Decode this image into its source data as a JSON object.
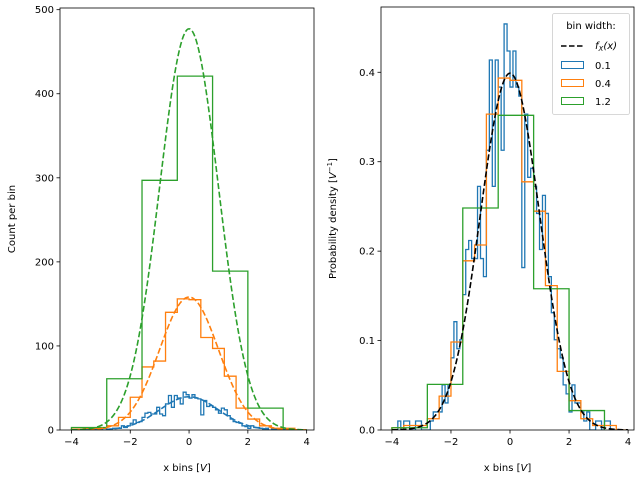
{
  "chart_data": [
    {
      "type": "histogram-step",
      "ylabel": "Count per bin",
      "xlabel_text": "x bins [",
      "xlabel_unit": "V",
      "xlabel_close": "]",
      "xlim": [
        -4.39,
        4.25
      ],
      "ylim": [
        0,
        502
      ],
      "xticks": [
        -4,
        -2,
        0,
        2,
        4
      ],
      "xtick_labels": [
        "−4",
        "−2",
        "0",
        "2",
        "4"
      ],
      "yticks": [
        0,
        100,
        200,
        300,
        400,
        500
      ],
      "ytick_labels": [
        "0",
        "100",
        "200",
        "300",
        "400",
        "500"
      ],
      "normalization": "count",
      "pdf_curve": {
        "distribution": "normal",
        "mu": 0,
        "sigma": 1,
        "scaled_by": "n*bin_width",
        "style": "dashed, series color"
      }
    },
    {
      "type": "histogram-step",
      "ylabel_text": "Probability density [",
      "ylabel_unit": "V",
      "ylabel_sup": "−1",
      "ylabel_close": "]",
      "xlabel_text": "x bins [",
      "xlabel_unit": "V",
      "xlabel_close": "]",
      "xlim": [
        -4.37,
        4.2
      ],
      "ylim": [
        0,
        0.473
      ],
      "xticks": [
        -4,
        -2,
        0,
        2,
        4
      ],
      "xtick_labels": [
        "−4",
        "−2",
        "0",
        "2",
        "4"
      ],
      "yticks": [
        0,
        0.1,
        0.2,
        0.3,
        0.4
      ],
      "ytick_labels": [
        "0.0",
        "0.1",
        "0.2",
        "0.3",
        "0.4"
      ],
      "normalization": "density",
      "pdf_curve": {
        "distribution": "normal",
        "mu": 0,
        "sigma": 1,
        "style": "dashed black"
      },
      "legend": {
        "title": "bin width:",
        "placement": "upper right",
        "pdf_label_main": "f",
        "pdf_label_sub": "X",
        "pdf_label_rest": "(x)",
        "entries": [
          "0.1",
          "0.4",
          "1.2"
        ]
      }
    }
  ],
  "series": [
    {
      "bin_width": "0.1",
      "color": "#1f77b4",
      "start": -4.0,
      "width": 0.1,
      "counts": [
        0,
        0,
        1,
        0,
        1,
        1,
        0,
        0,
        1,
        1,
        0,
        0,
        0,
        1,
        2,
        2,
        2,
        5,
        3,
        5,
        8,
        12,
        9,
        10,
        15,
        20,
        21,
        19,
        19,
        27,
        19,
        17,
        31,
        41,
        27,
        41,
        38,
        31,
        45,
        42,
        38,
        42,
        38,
        37,
        18,
        35,
        28,
        29,
        27,
        24,
        20,
        26,
        24,
        17,
        13,
        10,
        9,
        8,
        5,
        4,
        2,
        5,
        3,
        3,
        2,
        1,
        2,
        0,
        0,
        1,
        1,
        0,
        1,
        1,
        0,
        0,
        0,
        0,
        0,
        0
      ]
    },
    {
      "bin_width": "0.4",
      "color": "#ff7f0e",
      "start": -4.0,
      "width": 0.4,
      "counts": [
        1,
        2,
        2,
        5,
        15,
        39,
        75,
        82,
        140,
        156,
        155,
        110,
        97,
        64,
        26,
        13,
        5,
        2,
        2,
        0
      ]
    },
    {
      "bin_width": "1.2",
      "color": "#2ca02c",
      "start": -4.0,
      "width": 1.2,
      "counts": [
        3,
        61,
        297,
        421,
        189,
        26
      ]
    }
  ],
  "pdf_color": "#000000"
}
